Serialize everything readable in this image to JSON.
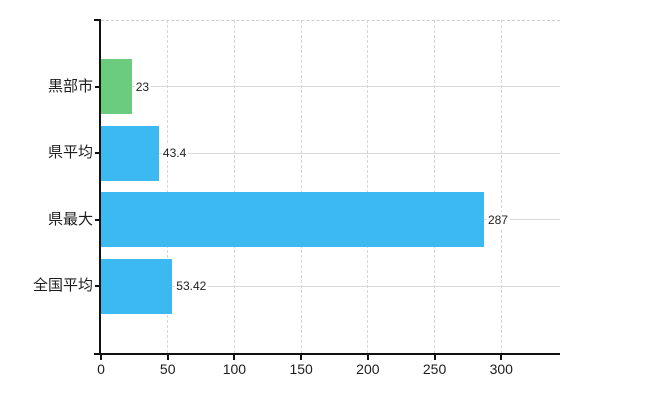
{
  "page": {
    "background_color": "#ffffff",
    "text_color": "#1d1d1d",
    "axis_color": "#111111",
    "grid_color_solid": "#d9d9d9",
    "grid_color_dashed": "#d6d6d6"
  },
  "chart_data": {
    "type": "bar",
    "orientation": "horizontal",
    "title": "",
    "xlabel": "",
    "ylabel": "",
    "categories": [
      "黒部市",
      "県平均",
      "県最大",
      "全国平均"
    ],
    "values": [
      23,
      43.4,
      287,
      53.42
    ],
    "value_labels": [
      "23",
      "43.4",
      "287",
      "53.42"
    ],
    "bar_colors": [
      "#6bcc7d",
      "#3db9f1",
      "#3db9f1",
      "#3db9f1"
    ],
    "x_ticks": [
      0,
      50,
      100,
      150,
      200,
      250,
      300
    ],
    "x_tick_labels": [
      "0",
      "50",
      "100",
      "150",
      "200",
      "250",
      "300"
    ],
    "xlim": [
      0,
      344
    ],
    "legend": "none",
    "grid": {
      "vertical": "dashed",
      "horizontal": "solid-at-category-centers",
      "top_border": "dashed"
    }
  }
}
